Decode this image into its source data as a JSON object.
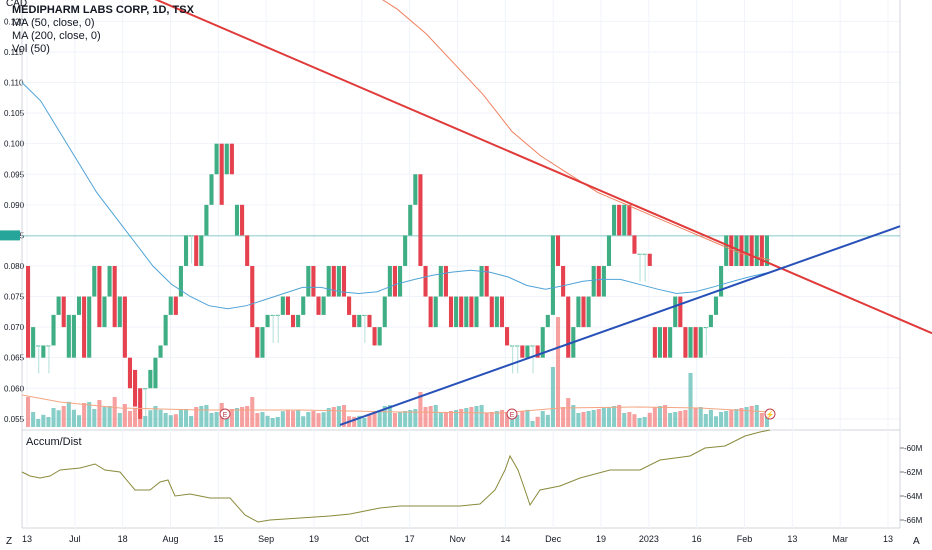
{
  "legend": {
    "title": "MEDIPHARM LABS CORP, 1D, TSX",
    "ma50": "MA (50, close, 0)",
    "ma200": "MA (200, close, 0)",
    "vol": "Vol (50)"
  },
  "currency": "CAD",
  "accum_label": "Accum/Dist",
  "corner_left": "Z",
  "corner_right": "A",
  "colors": {
    "up": "#26a69a",
    "down": "#ef5350",
    "upBar": "#3fae85",
    "downBar": "#e5414e",
    "ma50": "#4fa3d6",
    "ma200": "#f08060",
    "trendRed": "#e03a3a",
    "trendBlue": "#2750b8",
    "accum": "#8a8a3c",
    "grid": "#f0f3fa",
    "text": "#131722"
  },
  "chart_data": {
    "type": "candlestick",
    "title": "MEDIPHARM LABS CORP, 1D, TSX",
    "price_axis": {
      "unit": "CAD",
      "ticks": [
        "0.120",
        "0.115",
        "0.110",
        "0.105",
        "0.100",
        "0.095",
        "0.090",
        "0.085",
        "0.080",
        "0.075",
        "0.070",
        "0.065",
        "0.060",
        "0.055"
      ],
      "ylim": [
        0.0535,
        0.1235
      ]
    },
    "time_axis": {
      "ticks": [
        "13",
        "Jul",
        "18",
        "Aug",
        "15",
        "Sep",
        "19",
        "Oct",
        "17",
        "Nov",
        "14",
        "Dec",
        "19",
        "2023",
        "16",
        "Feb",
        "13",
        "Mar",
        "13"
      ]
    },
    "accum_axis": {
      "ticks": [
        "-60M",
        "-62M",
        "-64M",
        "-66M"
      ]
    },
    "price_series": [
      {
        "t": "Jun 13",
        "o": 0.08,
        "c": 0.065
      },
      {
        "t": "Jun 14",
        "o": 0.065,
        "c": 0.07
      },
      {
        "t": "Jun 15",
        "o": 0.067,
        "c": 0.067
      },
      {
        "t": "Jun 16",
        "o": 0.065,
        "c": 0.067
      },
      {
        "t": "Jun 17",
        "o": 0.067,
        "c": 0.067
      },
      {
        "t": "Jun 20",
        "o": 0.067,
        "c": 0.072
      },
      {
        "t": "Jun 21",
        "o": 0.072,
        "c": 0.075
      },
      {
        "t": "Jun 22",
        "o": 0.075,
        "c": 0.07
      },
      {
        "t": "Jun 23",
        "o": 0.065,
        "c": 0.072
      },
      {
        "t": "Jun 24",
        "o": 0.065,
        "c": 0.072
      },
      {
        "t": "Jun 27",
        "o": 0.072,
        "c": 0.075
      },
      {
        "t": "Jun 28",
        "o": 0.075,
        "c": 0.065
      },
      {
        "t": "Jun 29",
        "o": 0.065,
        "c": 0.075
      },
      {
        "t": "Jun 30",
        "o": 0.075,
        "c": 0.08
      },
      {
        "t": "Jul 4",
        "o": 0.08,
        "c": 0.07
      },
      {
        "t": "Jul 5",
        "o": 0.07,
        "c": 0.075
      },
      {
        "t": "Jul 6",
        "o": 0.075,
        "c": 0.08
      },
      {
        "t": "Jul 7",
        "o": 0.08,
        "c": 0.07
      },
      {
        "t": "Jul 8",
        "o": 0.07,
        "c": 0.075
      },
      {
        "t": "Jul 11",
        "o": 0.075,
        "c": 0.065
      },
      {
        "t": "Jul 12",
        "o": 0.065,
        "c": 0.06
      },
      {
        "t": "Jul 13",
        "o": 0.063,
        "c": 0.057
      },
      {
        "t": "Jul 14",
        "o": 0.06,
        "c": 0.055
      },
      {
        "t": "Jul 15",
        "o": 0.06,
        "c": 0.06
      },
      {
        "t": "Jul 18",
        "o": 0.06,
        "c": 0.063
      },
      {
        "t": "Jul 19",
        "o": 0.06,
        "c": 0.065
      },
      {
        "t": "Jul 20",
        "o": 0.065,
        "c": 0.067
      },
      {
        "t": "Jul 21",
        "o": 0.067,
        "c": 0.072
      },
      {
        "t": "Jul 22",
        "o": 0.072,
        "c": 0.075
      },
      {
        "t": "Jul 25",
        "o": 0.075,
        "c": 0.072
      },
      {
        "t": "Jul 26",
        "o": 0.075,
        "c": 0.08
      },
      {
        "t": "Jul 27",
        "o": 0.08,
        "c": 0.085
      },
      {
        "t": "Jul 28",
        "o": 0.085,
        "c": 0.085
      },
      {
        "t": "Jul 29",
        "o": 0.085,
        "c": 0.08
      },
      {
        "t": "Aug 2",
        "o": 0.08,
        "c": 0.085
      },
      {
        "t": "Aug 3",
        "o": 0.085,
        "c": 0.09
      },
      {
        "t": "Aug 4",
        "o": 0.09,
        "c": 0.095
      },
      {
        "t": "Aug 5",
        "o": 0.095,
        "c": 0.1
      },
      {
        "t": "Aug 8",
        "o": 0.1,
        "c": 0.09
      },
      {
        "t": "Aug 9",
        "o": 0.095,
        "c": 0.1
      },
      {
        "t": "Aug 10",
        "o": 0.1,
        "c": 0.095
      },
      {
        "t": "Aug 11",
        "o": 0.085,
        "c": 0.09
      },
      {
        "t": "Aug 12",
        "o": 0.09,
        "c": 0.085
      },
      {
        "t": "Aug 15",
        "o": 0.085,
        "c": 0.08
      },
      {
        "t": "Aug 16",
        "o": 0.08,
        "c": 0.07
      },
      {
        "t": "Aug 17",
        "o": 0.07,
        "c": 0.065
      },
      {
        "t": "Aug 18",
        "o": 0.065,
        "c": 0.07
      },
      {
        "t": "Aug 19",
        "o": 0.07,
        "c": 0.072
      },
      {
        "t": "Aug 22",
        "o": 0.072,
        "c": 0.072
      },
      {
        "t": "Aug 23",
        "o": 0.072,
        "c": 0.072
      },
      {
        "t": "Aug 24",
        "o": 0.072,
        "c": 0.075
      },
      {
        "t": "Aug 25",
        "o": 0.075,
        "c": 0.072
      },
      {
        "t": "Aug 26",
        "o": 0.072,
        "c": 0.07
      },
      {
        "t": "Aug 29",
        "o": 0.07,
        "c": 0.072
      },
      {
        "t": "Aug 30",
        "o": 0.072,
        "c": 0.075
      },
      {
        "t": "Aug 31",
        "o": 0.075,
        "c": 0.08
      },
      {
        "t": "Sep 1",
        "o": 0.08,
        "c": 0.075
      },
      {
        "t": "Sep 2",
        "o": 0.075,
        "c": 0.072
      },
      {
        "t": "Sep 6",
        "o": 0.072,
        "c": 0.075
      },
      {
        "t": "Sep 7",
        "o": 0.075,
        "c": 0.08
      },
      {
        "t": "Sep 8",
        "o": 0.08,
        "c": 0.075
      },
      {
        "t": "Sep 9",
        "o": 0.075,
        "c": 0.08
      },
      {
        "t": "Sep 12",
        "o": 0.08,
        "c": 0.075
      },
      {
        "t": "Sep 13",
        "o": 0.075,
        "c": 0.072
      },
      {
        "t": "Sep 14",
        "o": 0.072,
        "c": 0.07
      },
      {
        "t": "Sep 15",
        "o": 0.07,
        "c": 0.072
      },
      {
        "t": "Sep 16",
        "o": 0.072,
        "c": 0.072
      },
      {
        "t": "Sep 19",
        "o": 0.072,
        "c": 0.07
      },
      {
        "t": "Sep 20",
        "o": 0.07,
        "c": 0.067
      },
      {
        "t": "Sep 21",
        "o": 0.067,
        "c": 0.07
      },
      {
        "t": "Sep 22",
        "o": 0.07,
        "c": 0.075
      },
      {
        "t": "Sep 23",
        "o": 0.075,
        "c": 0.08
      },
      {
        "t": "Sep 26",
        "o": 0.08,
        "c": 0.075
      },
      {
        "t": "Sep 27",
        "o": 0.075,
        "c": 0.08
      },
      {
        "t": "Sep 28",
        "o": 0.08,
        "c": 0.085
      },
      {
        "t": "Sep 29",
        "o": 0.085,
        "c": 0.09
      },
      {
        "t": "Oct 3",
        "o": 0.09,
        "c": 0.095
      },
      {
        "t": "Oct 4",
        "o": 0.095,
        "c": 0.08
      },
      {
        "t": "Oct 5",
        "o": 0.08,
        "c": 0.075
      },
      {
        "t": "Oct 6",
        "o": 0.075,
        "c": 0.07
      },
      {
        "t": "Oct 7",
        "o": 0.07,
        "c": 0.075
      },
      {
        "t": "Oct 11",
        "o": 0.075,
        "c": 0.08
      },
      {
        "t": "Oct 12",
        "o": 0.08,
        "c": 0.075
      },
      {
        "t": "Oct 13",
        "o": 0.075,
        "c": 0.07
      },
      {
        "t": "Oct 14",
        "o": 0.07,
        "c": 0.075
      },
      {
        "t": "Oct 17",
        "o": 0.075,
        "c": 0.07
      },
      {
        "t": "Oct 18",
        "o": 0.07,
        "c": 0.075
      },
      {
        "t": "Oct 19",
        "o": 0.075,
        "c": 0.07
      },
      {
        "t": "Oct 20",
        "o": 0.07,
        "c": 0.075
      },
      {
        "t": "Oct 21",
        "o": 0.075,
        "c": 0.08
      },
      {
        "t": "Oct 24",
        "o": 0.08,
        "c": 0.075
      },
      {
        "t": "Oct 25",
        "o": 0.075,
        "c": 0.07
      },
      {
        "t": "Oct 26",
        "o": 0.07,
        "c": 0.075
      },
      {
        "t": "Oct 27",
        "o": 0.075,
        "c": 0.07
      },
      {
        "t": "Oct 28",
        "o": 0.07,
        "c": 0.067
      },
      {
        "t": "Oct 31",
        "o": 0.067,
        "c": 0.067
      },
      {
        "t": "Nov 1",
        "o": 0.067,
        "c": 0.067
      },
      {
        "t": "Nov 2",
        "o": 0.067,
        "c": 0.065
      },
      {
        "t": "Nov 3",
        "o": 0.065,
        "c": 0.067
      },
      {
        "t": "Nov 4",
        "o": 0.067,
        "c": 0.067
      },
      {
        "t": "Nov 7",
        "o": 0.067,
        "c": 0.065
      },
      {
        "t": "Nov 8",
        "o": 0.065,
        "c": 0.07
      },
      {
        "t": "Nov 9",
        "o": 0.07,
        "c": 0.072
      },
      {
        "t": "Nov 10",
        "o": 0.072,
        "c": 0.085
      },
      {
        "t": "Nov 11",
        "o": 0.085,
        "c": 0.08
      },
      {
        "t": "Nov 14",
        "o": 0.08,
        "c": 0.075
      },
      {
        "t": "Nov 15",
        "o": 0.075,
        "c": 0.065
      },
      {
        "t": "Nov 16",
        "o": 0.065,
        "c": 0.07
      },
      {
        "t": "Nov 17",
        "o": 0.07,
        "c": 0.075
      },
      {
        "t": "Nov 18",
        "o": 0.075,
        "c": 0.07
      },
      {
        "t": "Nov 21",
        "o": 0.07,
        "c": 0.075
      },
      {
        "t": "Nov 22",
        "o": 0.075,
        "c": 0.08
      },
      {
        "t": "Nov 23",
        "o": 0.08,
        "c": 0.075
      },
      {
        "t": "Nov 24",
        "o": 0.075,
        "c": 0.08
      },
      {
        "t": "Nov 25",
        "o": 0.08,
        "c": 0.085
      },
      {
        "t": "Nov 28",
        "o": 0.085,
        "c": 0.09
      },
      {
        "t": "Nov 29",
        "o": 0.09,
        "c": 0.085
      },
      {
        "t": "Nov 30",
        "o": 0.085,
        "c": 0.09
      },
      {
        "t": "Dec 1",
        "o": 0.09,
        "c": 0.085
      },
      {
        "t": "Dec 2",
        "o": 0.085,
        "c": 0.082
      },
      {
        "t": "Dec 5",
        "o": 0.082,
        "c": 0.082
      },
      {
        "t": "Dec 6",
        "o": 0.082,
        "c": 0.082
      },
      {
        "t": "Dec 7",
        "o": 0.082,
        "c": 0.08
      },
      {
        "t": "Dec 28",
        "o": 0.07,
        "c": 0.065
      },
      {
        "t": "Dec 29",
        "o": 0.065,
        "c": 0.07
      },
      {
        "t": "Dec 30",
        "o": 0.07,
        "c": 0.065
      },
      {
        "t": "Jan 3",
        "o": 0.065,
        "c": 0.07
      },
      {
        "t": "Jan 4",
        "o": 0.07,
        "c": 0.075
      },
      {
        "t": "Jan 5",
        "o": 0.075,
        "c": 0.07
      },
      {
        "t": "Jan 6",
        "o": 0.07,
        "c": 0.065
      },
      {
        "t": "Jan 9",
        "o": 0.065,
        "c": 0.07
      },
      {
        "t": "Jan 10",
        "o": 0.07,
        "c": 0.065
      },
      {
        "t": "Jan 11",
        "o": 0.065,
        "c": 0.07
      },
      {
        "t": "Jan 12",
        "o": 0.07,
        "c": 0.07
      },
      {
        "t": "Jan 13",
        "o": 0.07,
        "c": 0.072
      },
      {
        "t": "Jan 16",
        "o": 0.072,
        "c": 0.075
      },
      {
        "t": "Jan 17",
        "o": 0.075,
        "c": 0.08
      },
      {
        "t": "Jan 18",
        "o": 0.08,
        "c": 0.085
      },
      {
        "t": "Jan 19",
        "o": 0.085,
        "c": 0.08
      },
      {
        "t": "Jan 20",
        "o": 0.08,
        "c": 0.085
      },
      {
        "t": "Jan 23",
        "o": 0.085,
        "c": 0.08
      },
      {
        "t": "Jan 24",
        "o": 0.08,
        "c": 0.085
      },
      {
        "t": "Jan 25",
        "o": 0.085,
        "c": 0.08
      },
      {
        "t": "Jan 26",
        "o": 0.08,
        "c": 0.085
      },
      {
        "t": "Jan 27",
        "o": 0.085,
        "c": 0.08
      },
      {
        "t": "Jan 30",
        "o": 0.08,
        "c": 0.085
      }
    ],
    "ma50": [
      0.11,
      0.107,
      0.102,
      0.097,
      0.092,
      0.088,
      0.084,
      0.08,
      0.077,
      0.075,
      0.0735,
      0.073,
      0.0735,
      0.0745,
      0.0755,
      0.0765,
      0.0765,
      0.0758,
      0.0755,
      0.0758,
      0.077,
      0.0778,
      0.0785,
      0.079,
      0.0793,
      0.079,
      0.0782,
      0.0768,
      0.0762,
      0.0768,
      0.0775,
      0.0778,
      0.0778,
      0.077,
      0.0762,
      0.0755,
      0.0758,
      0.0766,
      0.0775,
      0.0783,
      0.079
    ],
    "ma200": [
      0.127,
      0.125,
      0.122,
      0.118,
      0.113,
      0.108,
      0.102,
      0.098,
      0.095,
      0.092,
      0.09,
      0.088,
      0.086,
      0.084,
      0.082,
      0.081
    ],
    "volume_unit": "relative",
    "accum_dist_range": [
      "-60M",
      "-66M"
    ],
    "trendlines": [
      {
        "name": "resistance",
        "color": "red",
        "from": {
          "t": "Jun 10",
          "price": 0.124
        },
        "to": {
          "t": "Mar 20",
          "price": 0.069
        }
      },
      {
        "name": "support",
        "color": "blue",
        "from": {
          "t": "Sep 22",
          "price": 0.054
        },
        "to": {
          "t": "Mar 20",
          "price": 0.0865
        }
      }
    ],
    "grid": true,
    "legend_position": "top-left"
  }
}
